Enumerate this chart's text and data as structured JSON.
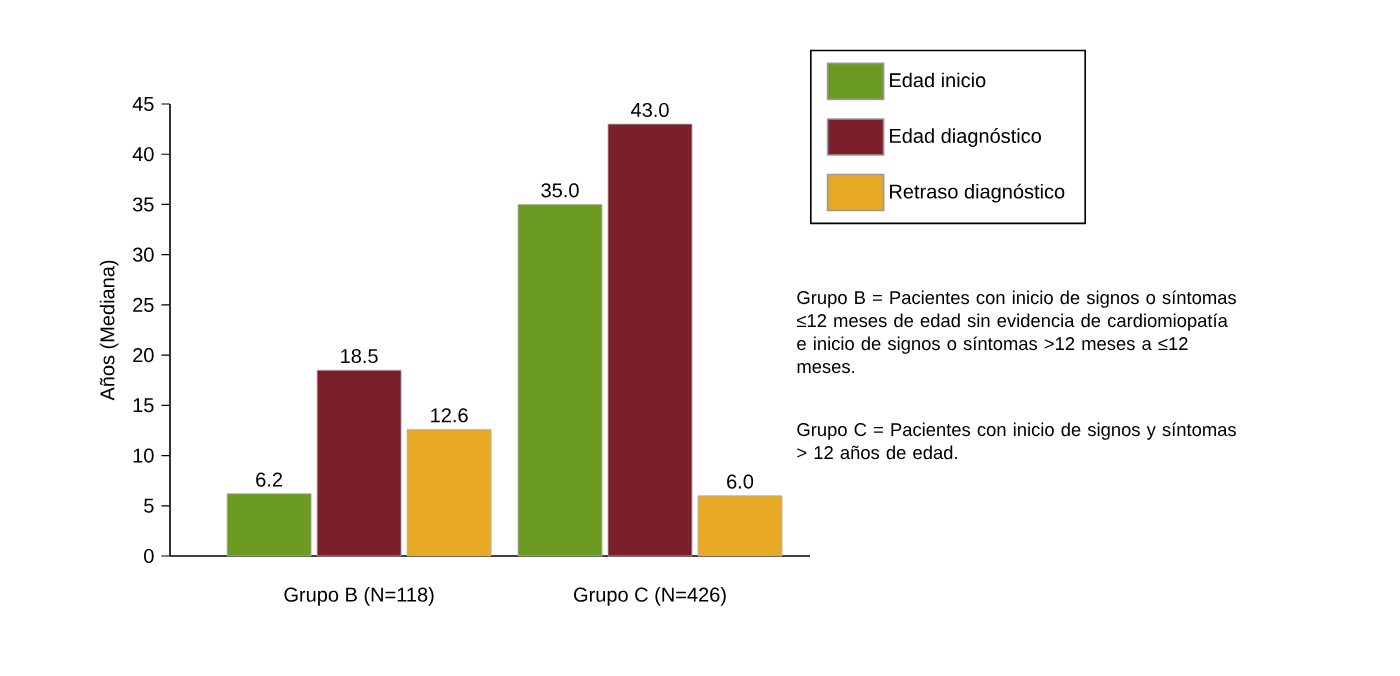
{
  "chart_data": {
    "type": "bar",
    "categories": [
      "Grupo B (N=118)",
      "Grupo C (N=426)"
    ],
    "ylabel": "Años (Mediana)",
    "series": [
      {
        "name": "Edad inicio",
        "color": "#6a9a1f",
        "values": [
          6.2,
          35.0
        ],
        "value_labels": [
          "6.2",
          "35.0"
        ]
      },
      {
        "name": "Edad diagnóstico",
        "color": "#7b1f2b",
        "values": [
          18.5,
          43.0
        ],
        "value_labels": [
          "18.5",
          "43.0"
        ]
      },
      {
        "name": "Retraso diagnóstico",
        "color": "#e8aa25",
        "values": [
          12.6,
          6.0
        ],
        "value_labels": [
          "12.6",
          "6.0"
        ]
      }
    ],
    "ylim": [
      0,
      45
    ],
    "yticks": [
      0,
      5,
      10,
      15,
      20,
      25,
      30,
      35,
      40,
      45
    ],
    "grid": false,
    "legend": "top right",
    "annotations": [
      "Grupo B = Pacientes con inicio de signos o síntomas ≤12 meses de edad sin evidencia de cardiomiopatía e inicio de signos o síntomas >12 meses a ≤12 meses.",
      "Grupo C = Pacientes con inicio de signos y síntomas > 12 años de edad."
    ]
  }
}
